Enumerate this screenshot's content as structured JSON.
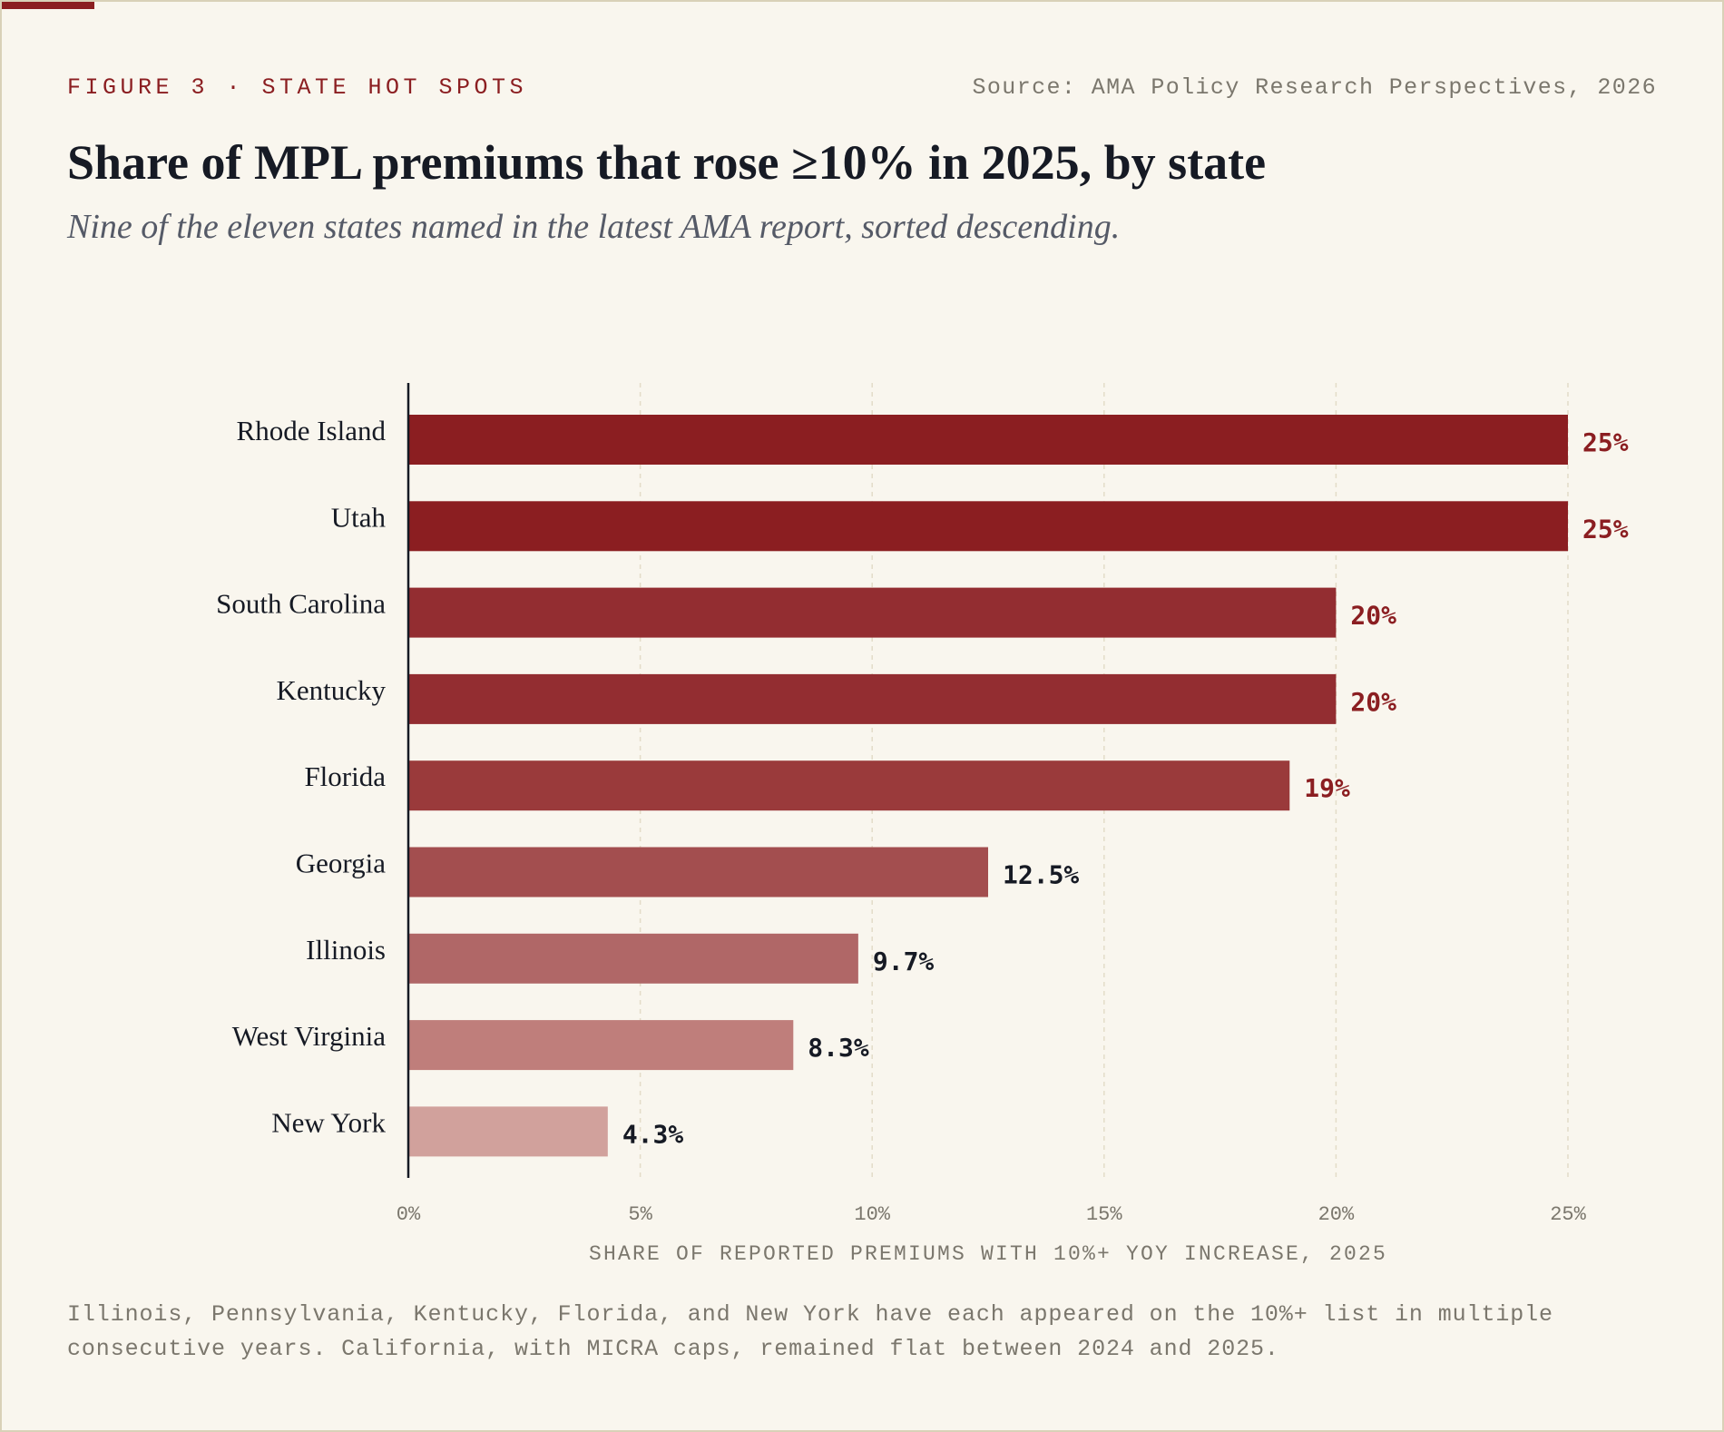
{
  "header": {
    "kicker": "FIGURE 3 · STATE HOT SPOTS",
    "source": "Source: AMA Policy Research Perspectives, 2026",
    "title": "Share of MPL premiums that rose ≥10% in 2025, by state",
    "subtitle": "Nine of the eleven states named in the latest AMA report, sorted descending."
  },
  "footnote": "Illinois, Pennsylvania, Kentucky, Florida, and New York have each appeared on the 10%+ list in multiple consecutive years. California, with MICRA caps, remained flat between 2024 and 2025.",
  "colors": {
    "accent": "#8b1e21",
    "background": "#f9f6ee",
    "bar_shades": [
      "#8b1e21",
      "#8b1e21",
      "#932d31",
      "#932d31",
      "#9a3a3b",
      "#a34e4f",
      "#b06767",
      "#bf7e7b",
      "#d1a19c"
    ],
    "label_dark": "#161a24"
  },
  "chart_data": {
    "type": "bar",
    "orientation": "horizontal",
    "categories": [
      "Rhode Island",
      "Utah",
      "South Carolina",
      "Kentucky",
      "Florida",
      "Georgia",
      "Illinois",
      "West Virginia",
      "New York"
    ],
    "values": [
      25,
      25,
      20,
      20,
      19,
      12.5,
      9.7,
      8.3,
      4.3
    ],
    "value_labels": [
      "25%",
      "25%",
      "20%",
      "20%",
      "19%",
      "12.5%",
      "9.7%",
      "8.3%",
      "4.3%"
    ],
    "xlim": [
      0,
      25
    ],
    "x_ticks": [
      0,
      5,
      10,
      15,
      20,
      25
    ],
    "x_tick_labels": [
      "0%",
      "5%",
      "10%",
      "15%",
      "20%",
      "25%"
    ],
    "xlabel": "SHARE OF REPORTED PREMIUMS WITH 10%+ YOY INCREASE, 2025",
    "grid": "vertical dashed",
    "legend": "none"
  }
}
